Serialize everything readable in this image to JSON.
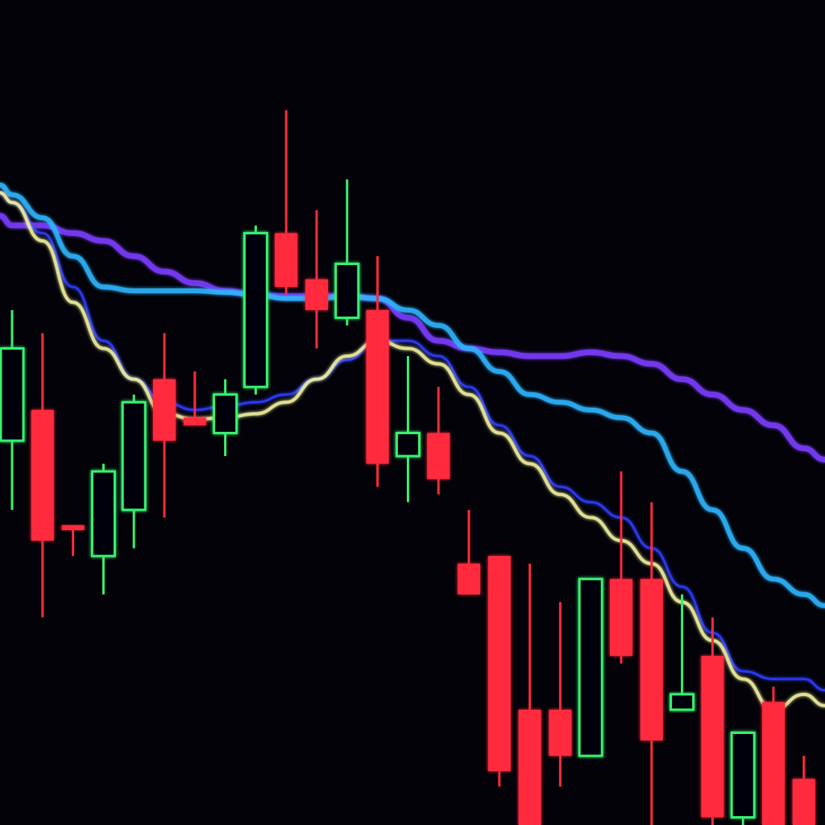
{
  "chart_data": {
    "type": "candlestick",
    "title": "",
    "xlabel": "",
    "ylabel": "",
    "ylim": [
      0,
      100
    ],
    "grid": false,
    "legend": "none",
    "colors": {
      "background": "#020208",
      "up": "#39f070",
      "down": "#ff2a3c",
      "ma_yellow": "#f2f2a0",
      "ma_blue": "#2e3cff",
      "ma_cyan": "#2fb6ff",
      "ma_purple": "#7b3cff"
    },
    "candles": [
      {
        "open": 50,
        "close": 62,
        "high": 67,
        "low": 41,
        "dir": "up"
      },
      {
        "open": 54,
        "close": 37,
        "high": 64,
        "low": 27,
        "dir": "down"
      },
      {
        "open": 39,
        "close": 38.5,
        "high": 39,
        "low": 35,
        "dir": "down"
      },
      {
        "open": 35,
        "close": 46,
        "high": 47,
        "low": 30,
        "dir": "up"
      },
      {
        "open": 41,
        "close": 55,
        "high": 56,
        "low": 36,
        "dir": "up"
      },
      {
        "open": 58,
        "close": 50,
        "high": 64,
        "low": 40,
        "dir": "down"
      },
      {
        "open": 53,
        "close": 52,
        "high": 59,
        "low": 52,
        "dir": "down"
      },
      {
        "open": 51,
        "close": 56,
        "high": 58,
        "low": 48,
        "dir": "up"
      },
      {
        "open": 57,
        "close": 77,
        "high": 78,
        "low": 56,
        "dir": "up"
      },
      {
        "open": 77,
        "close": 70,
        "high": 93,
        "low": 69,
        "dir": "down"
      },
      {
        "open": 71,
        "close": 67,
        "high": 80,
        "low": 62,
        "dir": "down"
      },
      {
        "open": 66,
        "close": 73,
        "high": 84,
        "low": 65,
        "dir": "up"
      },
      {
        "open": 67,
        "close": 47,
        "high": 74,
        "low": 44,
        "dir": "down"
      },
      {
        "open": 48,
        "close": 51,
        "high": 61,
        "low": 42,
        "dir": "up"
      },
      {
        "open": 51,
        "close": 45,
        "high": 57,
        "low": 43,
        "dir": "down"
      },
      {
        "open": 34,
        "close": 30,
        "high": 41,
        "low": 30,
        "dir": "down"
      },
      {
        "open": 35,
        "close": 7,
        "high": 35,
        "low": 5,
        "dir": "down"
      },
      {
        "open": 15,
        "close": 0,
        "high": 34,
        "low": 0,
        "dir": "down"
      },
      {
        "open": 15,
        "close": 9,
        "high": 29,
        "low": 5,
        "dir": "down"
      },
      {
        "open": 9,
        "close": 32,
        "high": 32,
        "low": 9,
        "dir": "up"
      },
      {
        "open": 32,
        "close": 22,
        "high": 46,
        "low": 21,
        "dir": "down"
      },
      {
        "open": 32,
        "close": 11,
        "high": 42,
        "low": 0,
        "dir": "down"
      },
      {
        "open": 15,
        "close": 17,
        "high": 30,
        "low": 15,
        "dir": "up"
      },
      {
        "open": 22,
        "close": 1,
        "high": 27,
        "low": 0,
        "dir": "down"
      },
      {
        "open": 1,
        "close": 12,
        "high": 12,
        "low": 0,
        "dir": "up"
      },
      {
        "open": 16,
        "close": 0,
        "high": 18,
        "low": 0,
        "dir": "down"
      },
      {
        "open": 6,
        "close": 0,
        "high": 9,
        "low": 0,
        "dir": "down"
      }
    ],
    "series": [
      {
        "color": "#f2f2a0",
        "values": [
          81,
          76,
          68,
          62,
          58,
          53.5,
          52.8,
          53,
          53.5,
          55,
          58,
          61,
          63,
          62,
          60,
          56,
          51,
          47,
          43,
          40,
          37,
          34,
          29,
          24,
          19,
          15,
          17
        ]
      },
      {
        "color": "#2e3cff",
        "values": [
          81,
          77,
          70,
          63,
          58,
          55,
          54,
          54.5,
          55,
          56,
          58,
          60.5,
          63,
          63,
          61,
          57,
          52,
          48,
          44,
          42,
          40,
          36,
          31,
          25,
          20,
          19,
          19
        ]
      },
      {
        "color": "#2fb6ff",
        "values": [
          82,
          79,
          74,
          70,
          69.5,
          69.5,
          69.5,
          69.3,
          69,
          68.5,
          68.5,
          68.8,
          68.5,
          67,
          65,
          62,
          59,
          56,
          55,
          54,
          53,
          51,
          46,
          41,
          36,
          32,
          30
        ]
      },
      {
        "color": "#7b3cff",
        "values": [
          78,
          78,
          77,
          76,
          74,
          72,
          70.5,
          69.5,
          69,
          68.8,
          68.8,
          68.8,
          68.5,
          66,
          63,
          62,
          61.5,
          61,
          61,
          61.5,
          61,
          60,
          58,
          56,
          54,
          52,
          49
        ]
      }
    ]
  }
}
